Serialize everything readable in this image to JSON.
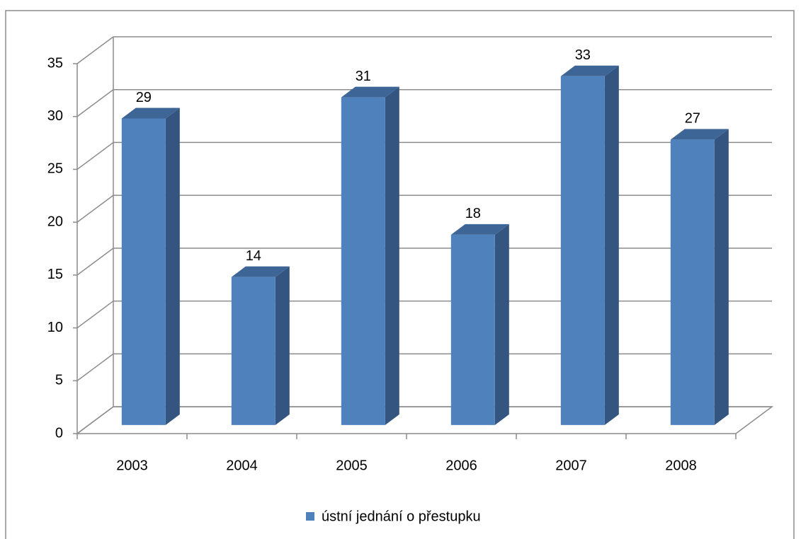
{
  "chart_data": {
    "type": "bar3d",
    "categories": [
      "2003",
      "2004",
      "2005",
      "2006",
      "2007",
      "2008"
    ],
    "series": [
      {
        "name": "ústní jednání o přestupku",
        "color": "#4f81bd",
        "values": [
          29,
          14,
          31,
          18,
          33,
          27
        ]
      }
    ],
    "ylim": [
      0,
      35
    ],
    "yticks": [
      0,
      5,
      10,
      15,
      20,
      25,
      30,
      35
    ],
    "grid": true,
    "legend": "bottom"
  }
}
